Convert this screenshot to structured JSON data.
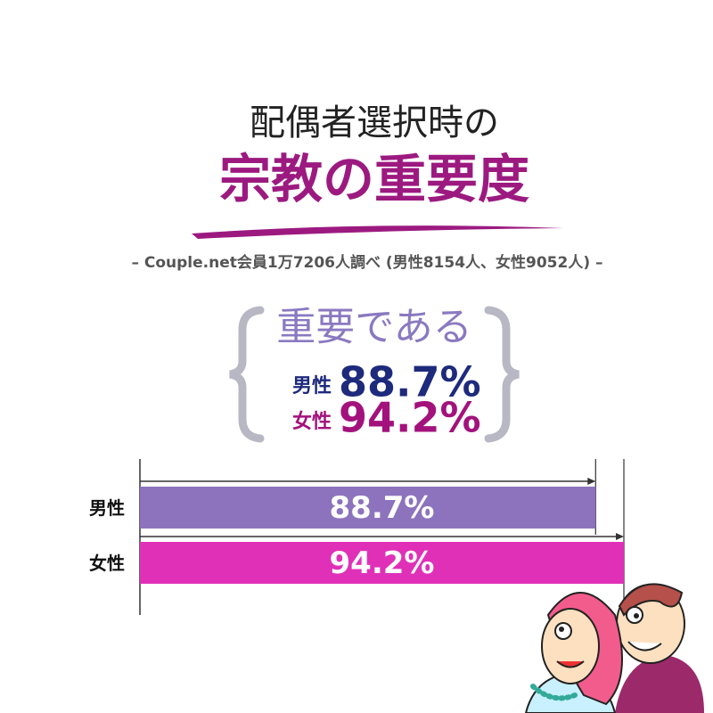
{
  "chart_data": {
    "type": "bar",
    "orientation": "horizontal",
    "title": "配偶者選択時の",
    "subtitle": "宗教の重要度",
    "note": "– Couple.net会員1万7206人調べ (男性8154人、女性9052人) –",
    "callout": "重要である",
    "categories": [
      "男性",
      "女性"
    ],
    "values": [
      88.7,
      94.2
    ],
    "value_labels": [
      "88.7%",
      "94.2%"
    ],
    "colors": [
      "#8d73bd",
      "#e030b8"
    ],
    "callout_colors": [
      "#1e2a7c",
      "#a3127c"
    ]
  }
}
